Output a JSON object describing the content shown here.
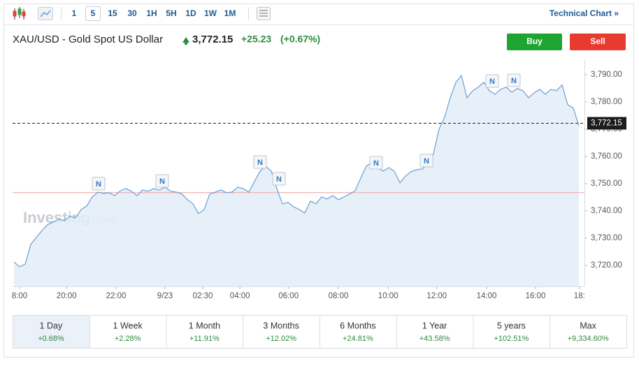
{
  "toolbar": {
    "intervals": [
      "1",
      "5",
      "15",
      "30",
      "1H",
      "5H",
      "1D",
      "1W",
      "1M"
    ],
    "technical_chart": "Technical Chart »"
  },
  "header": {
    "symbol": "XAU/USD - Gold Spot US Dollar",
    "price": "3,772.15",
    "change": "+25.23",
    "change_pct": "(+0.67%)",
    "buy": "Buy",
    "sell": "Sell"
  },
  "chart_data": {
    "type": "line",
    "color": "#6a9fd4",
    "x": [
      0,
      1,
      2,
      3,
      4,
      5,
      6,
      7,
      8,
      9,
      10,
      11,
      12,
      13,
      14,
      15,
      16,
      17,
      18,
      19,
      20,
      21,
      22,
      23,
      24,
      25,
      26,
      27,
      28,
      29,
      30,
      31,
      32,
      33,
      34,
      35,
      36,
      37,
      38,
      39,
      40,
      41,
      42,
      43,
      44,
      45,
      46,
      47,
      48,
      49,
      50,
      51,
      52,
      53,
      54,
      55,
      56,
      57,
      58,
      59,
      60,
      61,
      62,
      63,
      64,
      65,
      66,
      67,
      68,
      69,
      70,
      71,
      72,
      73,
      74,
      75,
      76,
      77,
      78,
      79,
      80,
      81,
      82,
      83,
      84,
      85,
      86,
      87,
      88,
      89,
      90,
      91,
      92,
      93,
      94,
      95,
      96,
      97,
      98,
      99,
      100,
      101
    ],
    "values": [
      3721.3,
      3719.5,
      3720.5,
      3727.7,
      3730.3,
      3732.8,
      3734.9,
      3735.9,
      3736.9,
      3736.4,
      3738,
      3737.4,
      3740.5,
      3741.8,
      3745.1,
      3746.9,
      3746.4,
      3746.7,
      3745.6,
      3747.4,
      3748.2,
      3747.2,
      3745.6,
      3747.7,
      3747.2,
      3748.2,
      3747.7,
      3748.7,
      3747.2,
      3746.9,
      3746.2,
      3744.1,
      3742.6,
      3739,
      3740.5,
      3746.2,
      3746.9,
      3747.7,
      3746.7,
      3746.9,
      3748.7,
      3748.2,
      3746.9,
      3750.8,
      3754.6,
      3756.4,
      3754.6,
      3748.2,
      3742.6,
      3743.1,
      3741.5,
      3740.5,
      3739.2,
      3743.6,
      3742.6,
      3745.1,
      3744.4,
      3745.6,
      3744.1,
      3745.1,
      3746.2,
      3747.4,
      3752.1,
      3756.4,
      3757.9,
      3755.9,
      3754.6,
      3755.9,
      3754.6,
      3750.3,
      3752.8,
      3754.4,
      3755.1,
      3755.4,
      3757.2,
      3761,
      3770,
      3774.4,
      3781.5,
      3787.2,
      3789.7,
      3781.5,
      3784.1,
      3785.4,
      3787.2,
      3784.1,
      3782.8,
      3784.6,
      3785.4,
      3783.6,
      3784.9,
      3784.1,
      3781.5,
      3783.3,
      3784.6,
      3782.8,
      3784.6,
      3784.1,
      3786.2,
      3779,
      3777.7,
      3771.3
    ],
    "xlim": [
      -0.25,
      102
    ],
    "xticks": [
      {
        "value": 1,
        "label": "8:00"
      },
      {
        "value": 9.4,
        "label": "20:00"
      },
      {
        "value": 18.25,
        "label": "22:00"
      },
      {
        "value": 27,
        "label": "9/23"
      },
      {
        "value": 33.75,
        "label": "02:30"
      },
      {
        "value": 40.4,
        "label": "04:00"
      },
      {
        "value": 49.1,
        "label": "06:00"
      },
      {
        "value": 58,
        "label": "08:00"
      },
      {
        "value": 66.9,
        "label": "10:00"
      },
      {
        "value": 75.6,
        "label": "12:00"
      },
      {
        "value": 84.5,
        "label": "14:00"
      },
      {
        "value": 93.25,
        "label": "16:00"
      },
      {
        "value": 101.1,
        "label": "18:"
      }
    ],
    "ylim": [
      3712.3,
      3795.6
    ],
    "yticks": [
      {
        "value": 3720,
        "label": "3,720.00"
      },
      {
        "value": 3730,
        "label": "3,730.00"
      },
      {
        "value": 3740,
        "label": "3,740.00"
      },
      {
        "value": 3750,
        "label": "3,750.00"
      },
      {
        "value": 3760,
        "label": "3,760.00"
      },
      {
        "value": 3770,
        "label": "3,770.00"
      },
      {
        "value": 3780,
        "label": "3,780.00"
      },
      {
        "value": 3790,
        "label": "3,790.00"
      }
    ],
    "current": {
      "value": 3772.15,
      "label": "3,772.15"
    },
    "reference_line": 3746.7,
    "news_label": "N",
    "watermark": "Investing",
    "watermark_suffix": ".com"
  },
  "periods": [
    {
      "label": "1 Day",
      "change": "+0.68%"
    },
    {
      "label": "1 Week",
      "change": "+2.28%"
    },
    {
      "label": "1 Month",
      "change": "+11.91%"
    },
    {
      "label": "3 Months",
      "change": "+12.02%"
    },
    {
      "label": "6 Months",
      "change": "+24.81%"
    },
    {
      "label": "1 Year",
      "change": "+43.58%"
    },
    {
      "label": "5 years",
      "change": "+102.51%"
    },
    {
      "label": "Max",
      "change": "+9,334.60%"
    }
  ]
}
